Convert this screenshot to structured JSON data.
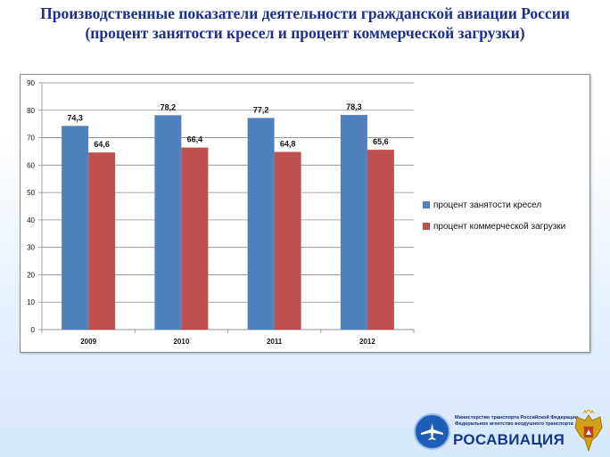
{
  "slide": {
    "title_line1": "Производственные показатели деятельности гражданской авиации России",
    "title_line2": "(процент занятости кресел  и процент коммерческой загрузки)"
  },
  "chart_data": {
    "type": "bar",
    "categories": [
      "2009",
      "2010",
      "2011",
      "2012"
    ],
    "series": [
      {
        "name": "процент занятости кресел",
        "values": [
          74.3,
          78.2,
          77.2,
          78.3
        ],
        "labels": [
          "74,3",
          "78,2",
          "77,2",
          "78,3"
        ],
        "color": "#4f81bd"
      },
      {
        "name": "процент коммерческой загрузки",
        "values": [
          64.6,
          66.4,
          64.8,
          65.6
        ],
        "labels": [
          "64,6",
          "66,4",
          "64,8",
          "65,6"
        ],
        "color": "#c0504d"
      }
    ],
    "ylim": [
      0,
      90
    ],
    "yticks": [
      0,
      10,
      20,
      30,
      40,
      50,
      60,
      70,
      80,
      90
    ],
    "grid": true,
    "legend_position": "right"
  },
  "footer": {
    "org_line1": "Министерство транспорта Российской Федерации",
    "org_line2": "Федеральное агентство воздушного транспорта",
    "org_name": "РОСАВИАЦИЯ",
    "emblem_icon": "airplane-emblem-icon",
    "arms_icon": "double-headed-eagle-icon"
  }
}
